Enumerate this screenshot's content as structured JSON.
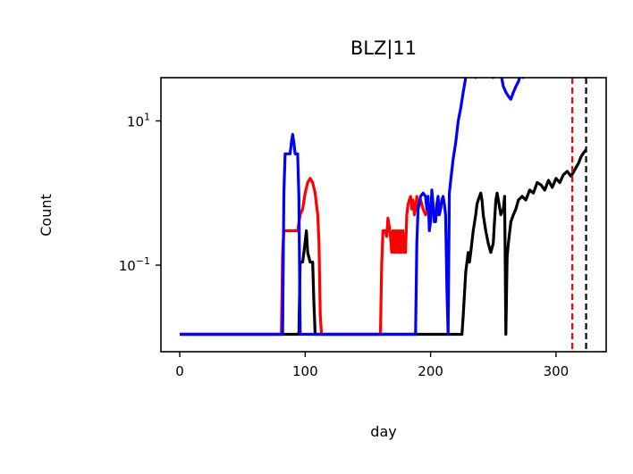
{
  "chart_data": {
    "type": "line",
    "title": "BLZ|11",
    "xlabel": "day",
    "ylabel": "Count",
    "xlim": [
      -15,
      340
    ],
    "ylog": true,
    "ylim_log10": [
      -2.2,
      1.6
    ],
    "grid": false,
    "legend": "none",
    "x_ticks": [
      {
        "value": 0,
        "label": "0"
      },
      {
        "value": 100,
        "label": "100"
      },
      {
        "value": 200,
        "label": "200"
      },
      {
        "value": 300,
        "label": "300"
      }
    ],
    "y_ticks": [
      {
        "value": 10,
        "base": "10",
        "exp": "1"
      },
      {
        "value": 0.1,
        "base": "10",
        "exp": "−1"
      }
    ],
    "series": [
      {
        "color": "#000000",
        "x": [
          0,
          95,
          96,
          98,
          99,
          101,
          102,
          104,
          106,
          107,
          108,
          109,
          110,
          150,
          200,
          225,
          226,
          228,
          229,
          230,
          231,
          232,
          234,
          236,
          237,
          238,
          240,
          241,
          242,
          244,
          246,
          248,
          250,
          251,
          252,
          253,
          254,
          256,
          258,
          259,
          260,
          261,
          262,
          264,
          266,
          268,
          270,
          273,
          276,
          279,
          282,
          285,
          288,
          291,
          294,
          297,
          300,
          303,
          306,
          309,
          312,
          315,
          318,
          320,
          322,
          324
        ],
        "y": [
          0.011,
          0.011,
          0.11,
          0.11,
          0.15,
          0.3,
          0.15,
          0.11,
          0.11,
          0.03,
          0.011,
          0.011,
          0.011,
          0.011,
          0.011,
          0.011,
          0.02,
          0.08,
          0.11,
          0.15,
          0.11,
          0.15,
          0.3,
          0.5,
          0.7,
          0.8,
          1.0,
          0.8,
          0.5,
          0.3,
          0.2,
          0.15,
          0.2,
          0.4,
          0.8,
          1.0,
          0.8,
          0.5,
          0.6,
          0.9,
          0.011,
          0.13,
          0.2,
          0.4,
          0.5,
          0.6,
          0.8,
          0.9,
          0.8,
          1.1,
          1.0,
          1.4,
          1.3,
          1.1,
          1.5,
          1.2,
          1.6,
          1.4,
          1.8,
          2.0,
          1.7,
          2.1,
          2.6,
          3.2,
          3.6,
          4.0
        ]
      },
      {
        "color": "#ff0000",
        "x": [
          0,
          81,
          82,
          83,
          84,
          90,
          94,
          96,
          98,
          100,
          102,
          104,
          106,
          108,
          109,
          110,
          111,
          112,
          113,
          160,
          161,
          162,
          163,
          164,
          165,
          166,
          167,
          168,
          169,
          170,
          171,
          172,
          173,
          174,
          175,
          176,
          177,
          178,
          179,
          180,
          181,
          182,
          183,
          184,
          185,
          186,
          187,
          188,
          189,
          190,
          192,
          194,
          196,
          198,
          200,
          202,
          204,
          206
        ],
        "y": [
          0.011,
          0.011,
          0.15,
          0.3,
          0.3,
          0.3,
          0.3,
          0.5,
          0.6,
          1.0,
          1.4,
          1.6,
          1.4,
          1.0,
          0.7,
          0.5,
          0.2,
          0.02,
          0.011,
          0.011,
          0.1,
          0.3,
          0.3,
          0.3,
          0.25,
          0.45,
          0.35,
          0.25,
          0.15,
          0.3,
          0.15,
          0.3,
          0.15,
          0.3,
          0.15,
          0.3,
          0.15,
          0.3,
          0.15,
          0.15,
          0.5,
          0.7,
          0.8,
          0.9,
          0.6,
          0.8,
          0.5,
          0.6,
          0.9,
          0.6,
          0.8,
          0.6,
          0.5,
          0.6,
          0.5,
          0.6,
          0.5,
          0.5
        ]
      },
      {
        "color": "#0000ff",
        "x": [
          0,
          82,
          83,
          84,
          86,
          88,
          89,
          90,
          91,
          92,
          93,
          94,
          95,
          96,
          97,
          98,
          99,
          100,
          150,
          188,
          189,
          190,
          192,
          194,
          196,
          197,
          198,
          199,
          200,
          201,
          202,
          203,
          204,
          205,
          206,
          207,
          208,
          209,
          210,
          211,
          212,
          213,
          214,
          215,
          216,
          218,
          220,
          222,
          224,
          226,
          228,
          230,
          232,
          234,
          236,
          238,
          240,
          242,
          244,
          246,
          248,
          250,
          252,
          254,
          256,
          258,
          260,
          262,
          264,
          266,
          268,
          270,
          272,
          274,
          276,
          278,
          280,
          282,
          284,
          286,
          288,
          290,
          292,
          294,
          296,
          298,
          300,
          302,
          304,
          306,
          308,
          310,
          312,
          314,
          316,
          318,
          320,
          322,
          324
        ],
        "y": [
          0.011,
          0.011,
          1.0,
          3.5,
          3.5,
          3.5,
          5.0,
          6.5,
          5.0,
          3.5,
          3.5,
          3.5,
          0.9,
          0.011,
          0.011,
          0.011,
          0.011,
          0.011,
          0.011,
          0.011,
          0.2,
          0.6,
          0.9,
          1.0,
          0.9,
          0.6,
          0.9,
          0.3,
          0.4,
          1.1,
          0.7,
          0.4,
          0.4,
          0.7,
          0.9,
          0.5,
          0.6,
          0.8,
          0.9,
          0.7,
          0.5,
          0.05,
          0.011,
          1.0,
          1.5,
          3.0,
          5.0,
          10,
          15,
          25,
          40,
          50,
          55,
          45,
          40,
          50,
          55,
          45,
          55,
          60,
          50,
          40,
          50,
          55,
          45,
          30,
          25,
          22,
          20,
          25,
          30,
          35,
          45,
          40,
          45,
          55,
          50,
          55,
          50,
          60,
          55,
          50,
          55,
          60,
          50,
          55,
          60,
          70,
          60,
          65,
          90,
          85,
          95,
          100,
          90,
          85,
          95,
          75,
          65
        ]
      }
    ],
    "vlines": [
      {
        "x": 313,
        "color": "#ff0000",
        "style": "dashed"
      },
      {
        "x": 324,
        "color": "#000000",
        "style": "dashed"
      }
    ]
  }
}
